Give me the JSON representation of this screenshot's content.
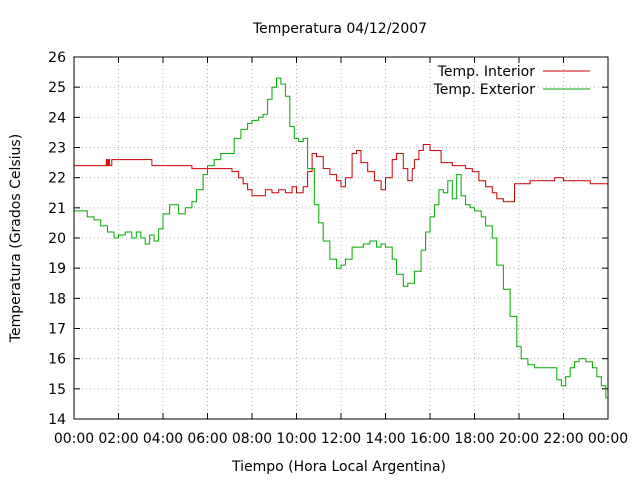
{
  "chart_data": {
    "type": "line",
    "title": "Temperatura 04/12/2007",
    "xlabel": "Tiempo (Hora Local Argentina)",
    "ylabel": "Temperatura (Grados Celsius)",
    "xlim": [
      0,
      24
    ],
    "ylim": [
      14,
      26
    ],
    "x_ticks": [
      0,
      2,
      4,
      6,
      8,
      10,
      12,
      14,
      16,
      18,
      20,
      22,
      24
    ],
    "x_tick_labels": [
      "00:00",
      "02:00",
      "04:00",
      "06:00",
      "08:00",
      "10:00",
      "12:00",
      "14:00",
      "16:00",
      "18:00",
      "20:00",
      "22:00",
      "00:00"
    ],
    "y_ticks": [
      14,
      15,
      16,
      17,
      18,
      19,
      20,
      21,
      22,
      23,
      24,
      25,
      26
    ],
    "x_unit": "hours",
    "grid": true,
    "legend_position": "top-right",
    "series": [
      {
        "name": "Temp. Interior",
        "color": "#cc0000",
        "x": [
          0.0,
          1.4,
          1.45,
          1.5,
          1.55,
          1.6,
          1.7,
          1.8,
          2.0,
          3.5,
          3.5,
          5.2,
          5.3,
          5.5,
          6.0,
          6.5,
          7.0,
          7.1,
          7.4,
          7.6,
          7.8,
          8.0,
          8.3,
          8.6,
          8.9,
          9.2,
          9.5,
          9.8,
          10.0,
          10.3,
          10.5,
          10.7,
          10.9,
          11.2,
          11.5,
          11.8,
          12.0,
          12.2,
          12.5,
          12.7,
          12.9,
          13.2,
          13.5,
          13.8,
          14.0,
          14.3,
          14.5,
          14.8,
          15.0,
          15.2,
          15.3,
          15.5,
          15.7,
          16.0,
          16.5,
          17.0,
          17.3,
          17.6,
          17.9,
          18.2,
          18.5,
          18.8,
          19.0,
          19.3,
          19.5,
          19.8,
          20.5,
          21.0,
          21.2,
          21.4,
          21.6,
          22.0,
          22.5,
          23.0,
          23.2,
          24.0
        ],
        "y": [
          22.4,
          22.4,
          22.6,
          22.4,
          22.6,
          22.4,
          22.6,
          22.6,
          22.6,
          22.6,
          22.4,
          22.4,
          22.3,
          22.3,
          22.3,
          22.3,
          22.3,
          22.2,
          22.0,
          21.8,
          21.6,
          21.4,
          21.4,
          21.6,
          21.5,
          21.6,
          21.5,
          21.7,
          21.5,
          21.7,
          22.2,
          22.8,
          22.7,
          22.3,
          22.1,
          21.9,
          21.7,
          22.0,
          22.8,
          22.9,
          22.5,
          22.2,
          21.9,
          21.6,
          22.0,
          22.6,
          22.8,
          22.3,
          21.9,
          22.3,
          22.6,
          22.9,
          23.1,
          22.9,
          22.5,
          22.4,
          22.4,
          22.3,
          22.2,
          21.9,
          21.7,
          21.5,
          21.3,
          21.2,
          21.2,
          21.8,
          21.9,
          21.9,
          21.9,
          21.9,
          22.0,
          21.9,
          21.9,
          21.9,
          21.8,
          21.8
        ]
      },
      {
        "name": "Temp. Exterior",
        "color": "#00aa00",
        "x": [
          0.0,
          0.3,
          0.6,
          0.9,
          1.2,
          1.5,
          1.8,
          2.0,
          2.3,
          2.6,
          2.8,
          3.0,
          3.2,
          3.4,
          3.6,
          3.8,
          4.0,
          4.3,
          4.5,
          4.7,
          5.0,
          5.3,
          5.5,
          5.8,
          6.0,
          6.3,
          6.6,
          6.9,
          7.2,
          7.5,
          7.8,
          8.0,
          8.3,
          8.5,
          8.7,
          8.9,
          9.1,
          9.3,
          9.5,
          9.7,
          9.9,
          10.1,
          10.3,
          10.5,
          10.8,
          11.0,
          11.2,
          11.5,
          11.8,
          12.0,
          12.2,
          12.5,
          12.8,
          13.0,
          13.3,
          13.6,
          13.8,
          14.0,
          14.3,
          14.5,
          14.8,
          15.0,
          15.3,
          15.6,
          15.8,
          16.0,
          16.2,
          16.4,
          16.6,
          16.8,
          17.0,
          17.2,
          17.4,
          17.6,
          17.8,
          18.0,
          18.3,
          18.5,
          18.8,
          19.0,
          19.3,
          19.6,
          19.9,
          20.1,
          20.4,
          20.7,
          21.0,
          21.3,
          21.5,
          21.7,
          21.9,
          22.1,
          22.3,
          22.5,
          22.7,
          23.0,
          23.3,
          23.5,
          23.7,
          23.9,
          24.0
        ],
        "y": [
          20.9,
          20.9,
          20.7,
          20.6,
          20.4,
          20.2,
          20.0,
          20.1,
          20.2,
          20.0,
          20.2,
          20.0,
          19.8,
          20.1,
          19.9,
          20.3,
          20.8,
          21.1,
          21.1,
          20.8,
          21.0,
          21.2,
          21.6,
          22.1,
          22.4,
          22.6,
          22.8,
          22.8,
          23.3,
          23.6,
          23.8,
          23.9,
          24.0,
          24.1,
          24.6,
          25.0,
          25.3,
          25.1,
          24.7,
          23.7,
          23.3,
          23.2,
          23.3,
          22.3,
          21.1,
          20.5,
          19.9,
          19.3,
          19.0,
          19.1,
          19.3,
          19.7,
          19.7,
          19.8,
          19.9,
          19.7,
          19.8,
          19.7,
          19.3,
          18.8,
          18.4,
          18.5,
          18.9,
          19.6,
          20.2,
          20.7,
          21.1,
          21.6,
          21.5,
          21.9,
          21.3,
          22.1,
          21.4,
          21.1,
          21.0,
          20.9,
          20.7,
          20.4,
          20.0,
          19.1,
          18.3,
          17.4,
          16.4,
          16.0,
          15.8,
          15.7,
          15.7,
          15.7,
          15.7,
          15.3,
          15.1,
          15.4,
          15.7,
          15.9,
          16.0,
          15.9,
          15.7,
          15.4,
          15.1,
          14.7,
          14.4
        ]
      }
    ]
  }
}
